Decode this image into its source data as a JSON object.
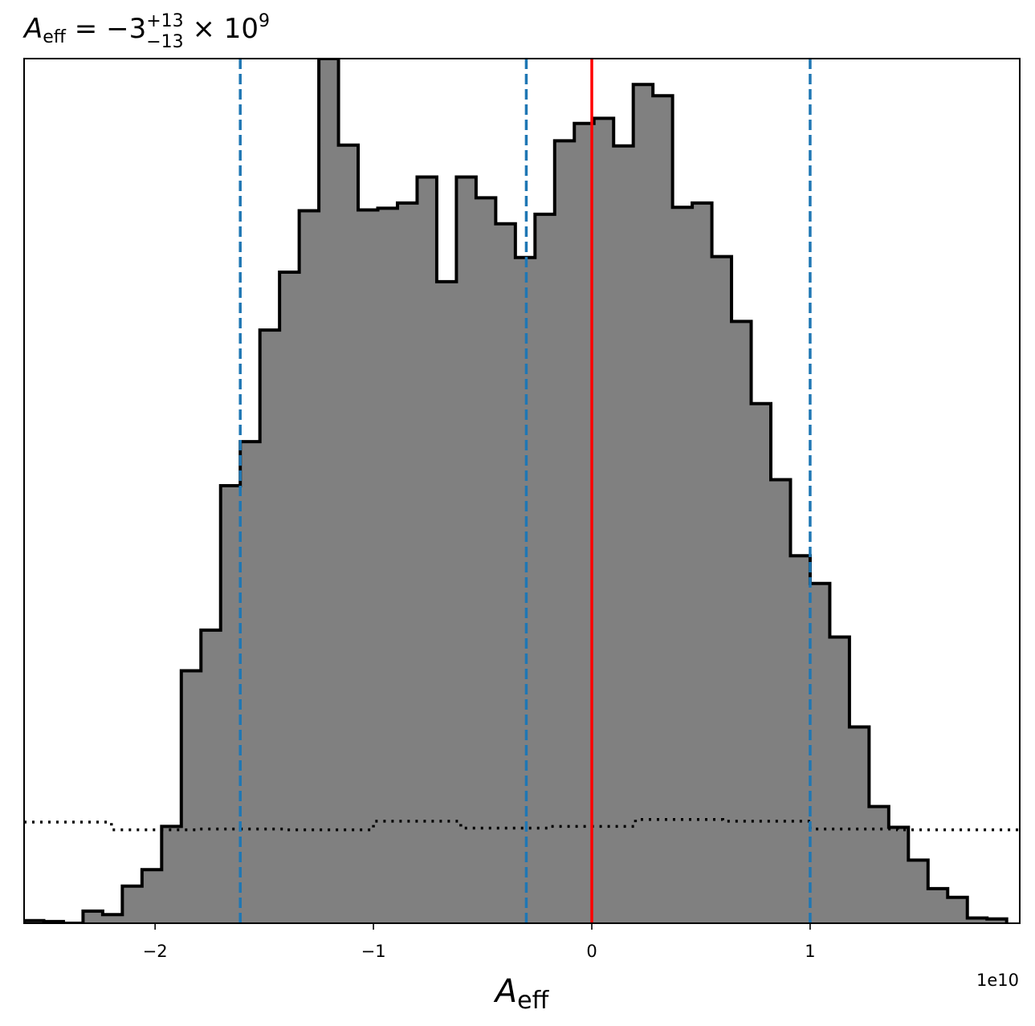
{
  "chart_data": {
    "type": "histogram",
    "title": {
      "symbol": "A",
      "subscript": "eff",
      "relation": " = ",
      "value": "−3",
      "upper": "+13",
      "lower": "−13",
      "multiplier": " × 10",
      "exponent": "9"
    },
    "xlabel": {
      "symbol": "A",
      "subscript": "eff"
    },
    "offset_label": "1e10",
    "x_scale": 10000000000.0,
    "xlim": [
      -2.6,
      1.96
    ],
    "ylim": [
      0,
      1
    ],
    "x_ticks": [
      {
        "value": -2,
        "label": "−2"
      },
      {
        "value": -1,
        "label": "−1"
      },
      {
        "value": 0,
        "label": "0"
      },
      {
        "value": 1,
        "label": "1"
      }
    ],
    "grid": false,
    "legend": "none",
    "posterior": {
      "edges": [
        -2.6,
        -2.51,
        -2.42,
        -2.33,
        -2.24,
        -2.15,
        -2.06,
        -1.97,
        -1.88,
        -1.79,
        -1.7,
        -1.61,
        -1.52,
        -1.43,
        -1.34,
        -1.25,
        -1.16,
        -1.07,
        -0.98,
        -0.89,
        -0.8,
        -0.71,
        -0.62,
        -0.53,
        -0.44,
        -0.35,
        -0.26,
        -0.17,
        -0.08,
        0.01,
        0.1,
        0.19,
        0.28,
        0.37,
        0.46,
        0.55,
        0.64,
        0.73,
        0.82,
        0.91,
        1.0,
        1.09,
        1.18,
        1.27,
        1.36,
        1.45,
        1.54,
        1.63,
        1.72,
        1.81,
        1.9
      ],
      "heights": [
        0.003,
        0.002,
        0.0,
        0.014,
        0.01,
        0.043,
        0.062,
        0.112,
        0.292,
        0.339,
        0.506,
        0.557,
        0.686,
        0.753,
        0.824,
        1.0,
        0.9,
        0.825,
        0.827,
        0.833,
        0.863,
        0.742,
        0.863,
        0.839,
        0.809,
        0.77,
        0.82,
        0.905,
        0.925,
        0.931,
        0.899,
        0.97,
        0.957,
        0.828,
        0.833,
        0.771,
        0.696,
        0.601,
        0.513,
        0.425,
        0.393,
        0.331,
        0.227,
        0.135,
        0.111,
        0.073,
        0.04,
        0.03,
        0.006,
        0.005
      ],
      "fill_color": "#808080",
      "edge_color": "#000000"
    },
    "prior": {
      "edges": [
        -2.6,
        -2.2,
        -1.8,
        -1.4,
        -1.0,
        -0.6,
        -0.2,
        0.2,
        0.6,
        1.0,
        1.4,
        1.96
      ],
      "heights": [
        0.117,
        0.108,
        0.109,
        0.108,
        0.118,
        0.11,
        0.112,
        0.12,
        0.118,
        0.109,
        0.108
      ],
      "color": "#000000"
    },
    "quantile_lines": {
      "values": [
        -1.61,
        -0.3,
        1.0
      ],
      "color": "#1f77b4"
    },
    "truth_line": {
      "value": 0.0,
      "color": "#ff0000"
    }
  }
}
